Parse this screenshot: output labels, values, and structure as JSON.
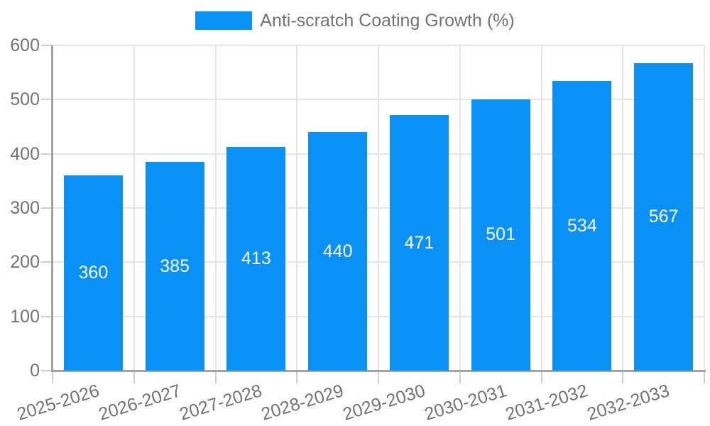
{
  "chart_data": {
    "type": "bar",
    "title": "",
    "legend": [
      {
        "label": "Anti-scratch Coating Growth (%)",
        "color": "#0991f6"
      }
    ],
    "legend_position": "top-center",
    "categories": [
      "2025-2026",
      "2026-2027",
      "2027-2028",
      "2028-2029",
      "2029-2030",
      "2030-2031",
      "2031-2032",
      "2032-2033"
    ],
    "series": [
      {
        "name": "Anti-scratch Coating Growth (%)",
        "values": [
          360,
          385,
          413,
          440,
          471,
          501,
          534,
          567
        ]
      }
    ],
    "value_labels": [
      "360",
      "385",
      "413",
      "440",
      "471",
      "501",
      "534",
      "567"
    ],
    "xlabel": "",
    "ylabel": "",
    "ylim": [
      0,
      600
    ],
    "yticks": [
      0,
      100,
      200,
      300,
      400,
      500,
      600
    ],
    "ytick_labels": [
      "0",
      "100",
      "200",
      "300",
      "400",
      "500",
      "600"
    ],
    "grid": true,
    "x_label_rotation_deg": 17,
    "colors": {
      "bar": "#0991f6",
      "value_text": "#ffffff",
      "axis_text": "#737373",
      "legend_text": "#737373",
      "gridline": "#e4e4e4",
      "axis_line": "#a3a3a3",
      "tick_mark": "#cfcfcf",
      "background": "#ffffff"
    }
  }
}
